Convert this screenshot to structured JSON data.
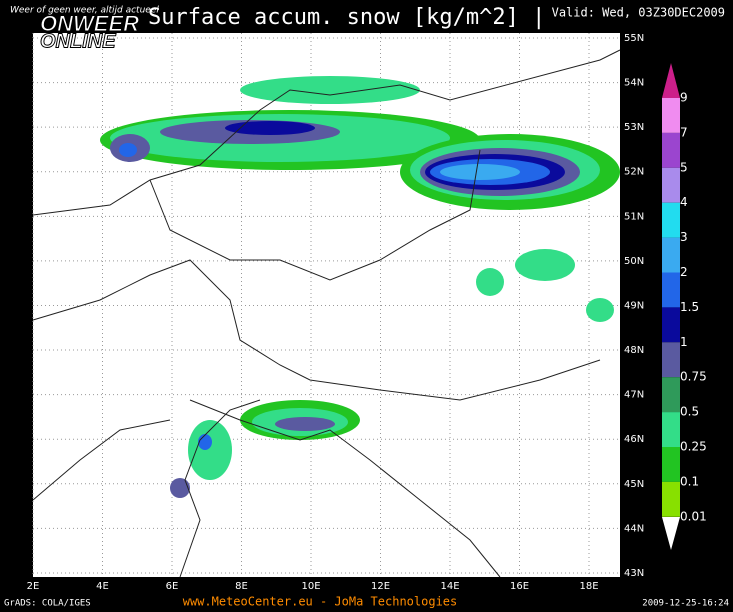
{
  "header": {
    "title": "Surface accum. snow [kg/m^2] |",
    "valid": "Valid: Wed, 03Z30DEC2009"
  },
  "logo": {
    "line1": "ONWEER",
    "line2": "ONLINE",
    "tagline": "Weer of geen weer, altijd actueel"
  },
  "map": {
    "lat_labels": [
      "55N",
      "54N",
      "53N",
      "52N",
      "51N",
      "50N",
      "49N",
      "48N",
      "47N",
      "46N",
      "45N",
      "44N",
      "43N"
    ],
    "lon_labels": [
      "2E",
      "4E",
      "6E",
      "8E",
      "10E",
      "12E",
      "14E",
      "16E",
      "18E"
    ]
  },
  "colorbar": {
    "labels": [
      "9",
      "7",
      "5",
      "4",
      "3",
      "2",
      "1.5",
      "1",
      "0.75",
      "0.5",
      "0.25",
      "0.1",
      "0.01"
    ],
    "colors": [
      "#cc1f8a",
      "#f08cf0",
      "#9b45cf",
      "#a98bec",
      "#22dcef",
      "#3aaaf0",
      "#2266e8",
      "#0a0a9c",
      "#5a5aa0",
      "#2f9a5a",
      "#33dd88",
      "#22c422",
      "#88e000"
    ]
  },
  "footer": {
    "left": "GrADS: COLA/IGES",
    "center": "www.MeteoCenter.eu  -  JoMa Technologies",
    "right": "2009-12-25-16:24"
  }
}
